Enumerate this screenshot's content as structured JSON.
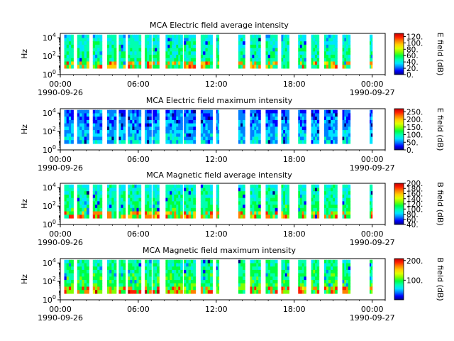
{
  "colorscale": [
    "#000080",
    "#0000ff",
    "#0080ff",
    "#00e5ff",
    "#00ffb0",
    "#00ff40",
    "#80ff00",
    "#e0ff00",
    "#ffd000",
    "#ff8000",
    "#ff2000",
    "#c00000"
  ],
  "chart_data": [
    {
      "type": "heatmap",
      "title": "MCA  Electric field average intensity",
      "ylabel": "Hz",
      "yscale": "log",
      "ylim": [
        1,
        30000
      ],
      "y_tick_labels": [
        "10^0",
        "10^2",
        "10^4"
      ],
      "xlim": [
        "1990-09-26 00:00",
        "1990-09-27 01:00"
      ],
      "x_tick_labels": [
        "00:00",
        "06:00",
        "12:00",
        "18:00",
        "00:00"
      ],
      "x_date_labels": [
        "1990-09-26",
        "1990-09-27"
      ],
      "colorbar_label": "E field (dB)",
      "colorbar_range": [
        0,
        130
      ],
      "colorbar_ticks": [
        "0.",
        "20.",
        "40.",
        "60.",
        "80.",
        "100.",
        "120."
      ],
      "data_hz_range": [
        5,
        22000
      ],
      "intensity_base": 0.32,
      "intensity_note": "mostly cyan/green, orange-yellow near low frequencies"
    },
    {
      "type": "heatmap",
      "title": "MCA  Electric field maximum intensity",
      "ylabel": "Hz",
      "yscale": "log",
      "ylim": [
        1,
        30000
      ],
      "y_tick_labels": [
        "10^0",
        "10^2",
        "10^4"
      ],
      "xlim": [
        "1990-09-26 00:00",
        "1990-09-27 01:00"
      ],
      "x_tick_labels": [
        "00:00",
        "06:00",
        "12:00",
        "18:00",
        "00:00"
      ],
      "x_date_labels": [
        "1990-09-26",
        "1990-09-27"
      ],
      "colorbar_label": "E field (dB)",
      "colorbar_range": [
        0,
        270
      ],
      "colorbar_ticks": [
        "0.",
        "50.",
        "100.",
        "150.",
        "200.",
        "250."
      ],
      "data_hz_range": [
        5,
        22000
      ],
      "intensity_base": 0.18,
      "intensity_note": "mostly blue/cyan"
    },
    {
      "type": "heatmap",
      "title": "MCA  Magnetic field average intensity",
      "ylabel": "Hz",
      "yscale": "log",
      "ylim": [
        1,
        30000
      ],
      "y_tick_labels": [
        "10^0",
        "10^2",
        "10^4"
      ],
      "xlim": [
        "1990-09-26 00:00",
        "1990-09-27 01:00"
      ],
      "x_tick_labels": [
        "00:00",
        "06:00",
        "12:00",
        "18:00",
        "00:00"
      ],
      "x_date_labels": [
        "1990-09-26",
        "1990-09-27"
      ],
      "colorbar_label": "B field (dB)",
      "colorbar_range": [
        40,
        200
      ],
      "colorbar_ticks": [
        "40.",
        "60.",
        "80.",
        "100.",
        "120.",
        "140.",
        "160.",
        "180.",
        "200."
      ],
      "data_hz_range": [
        5,
        22000
      ],
      "intensity_base": 0.34,
      "intensity_note": "cyan at high frequency, green with yellow/orange at low frequency"
    },
    {
      "type": "heatmap",
      "title": "MCA  Magnetic field maximum intensity",
      "ylabel": "Hz",
      "yscale": "log",
      "ylim": [
        1,
        30000
      ],
      "y_tick_labels": [
        "10^0",
        "10^2",
        "10^4"
      ],
      "xlim": [
        "1990-09-26 00:00",
        "1990-09-27 01:00"
      ],
      "x_tick_labels": [
        "00:00",
        "06:00",
        "12:00",
        "18:00",
        "00:00"
      ],
      "x_date_labels": [
        "1990-09-26",
        "1990-09-27"
      ],
      "colorbar_label": "B field (dB)",
      "colorbar_range": [
        0,
        210
      ],
      "colorbar_ticks": [
        "100.",
        "200."
      ],
      "data_hz_range": [
        5,
        22000
      ],
      "intensity_base": 0.38,
      "intensity_note": "green/cyan, orange-red at lowest frequencies"
    }
  ],
  "data_segments_hours": [
    [
      0.3,
      1.0
    ],
    [
      1.3,
      2.2
    ],
    [
      2.5,
      3.2
    ],
    [
      3.6,
      4.3
    ],
    [
      4.5,
      5.0
    ],
    [
      5.2,
      6.2
    ],
    [
      6.5,
      7.0
    ],
    [
      7.1,
      7.6
    ],
    [
      8.1,
      9.4
    ],
    [
      9.5,
      10.4
    ],
    [
      10.8,
      11.7
    ],
    [
      12.0,
      12.2
    ],
    [
      13.7,
      14.2
    ],
    [
      14.6,
      15.4
    ],
    [
      15.8,
      16.7
    ],
    [
      17.0,
      17.6
    ],
    [
      18.3,
      18.9
    ],
    [
      19.3,
      19.9
    ],
    [
      20.3,
      21.3
    ],
    [
      21.7,
      22.3
    ],
    [
      23.8,
      24.0
    ]
  ]
}
